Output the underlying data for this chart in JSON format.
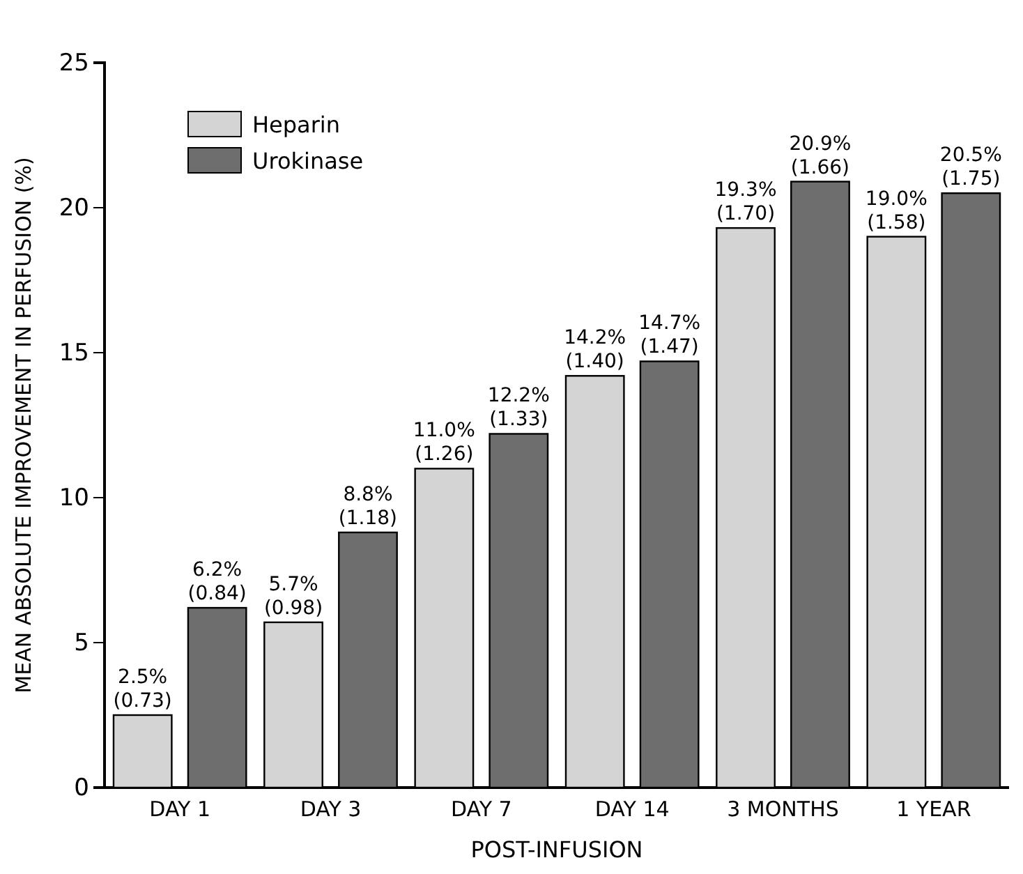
{
  "chart_data": {
    "type": "bar",
    "xlabel": "POST-INFUSION",
    "ylabel": "MEAN ABSOLUTE IMPROVEMENT IN PERFUSION (%)",
    "categories": [
      "DAY 1",
      "DAY 3",
      "DAY 7",
      "DAY 14",
      "3 MONTHS",
      "1 YEAR"
    ],
    "series": [
      {
        "name": "Heparin",
        "color": "#d4d4d4",
        "values": [
          2.5,
          5.7,
          11.0,
          14.2,
          19.3,
          19.0
        ],
        "value_labels": [
          "2.5% (0.73)",
          "5.7% (0.98)",
          "11.0% (1.26)",
          "14.2% (1.40)",
          "19.3% (1.70)",
          "19.0% (1.58)"
        ]
      },
      {
        "name": "Urokinase",
        "color": "#6e6e6e",
        "values": [
          6.2,
          8.8,
          12.2,
          14.7,
          20.9,
          20.5
        ],
        "value_labels": [
          "6.2% (0.84)",
          "8.8% (1.18)",
          "12.2% (1.33)",
          "14.7% (1.47)",
          "20.9% (1.66)",
          "20.5% (1.75)"
        ]
      }
    ],
    "ylim": [
      0,
      25
    ],
    "yticks": [
      0,
      5,
      10,
      15,
      20,
      25
    ],
    "grid": false,
    "legend": "top left"
  }
}
